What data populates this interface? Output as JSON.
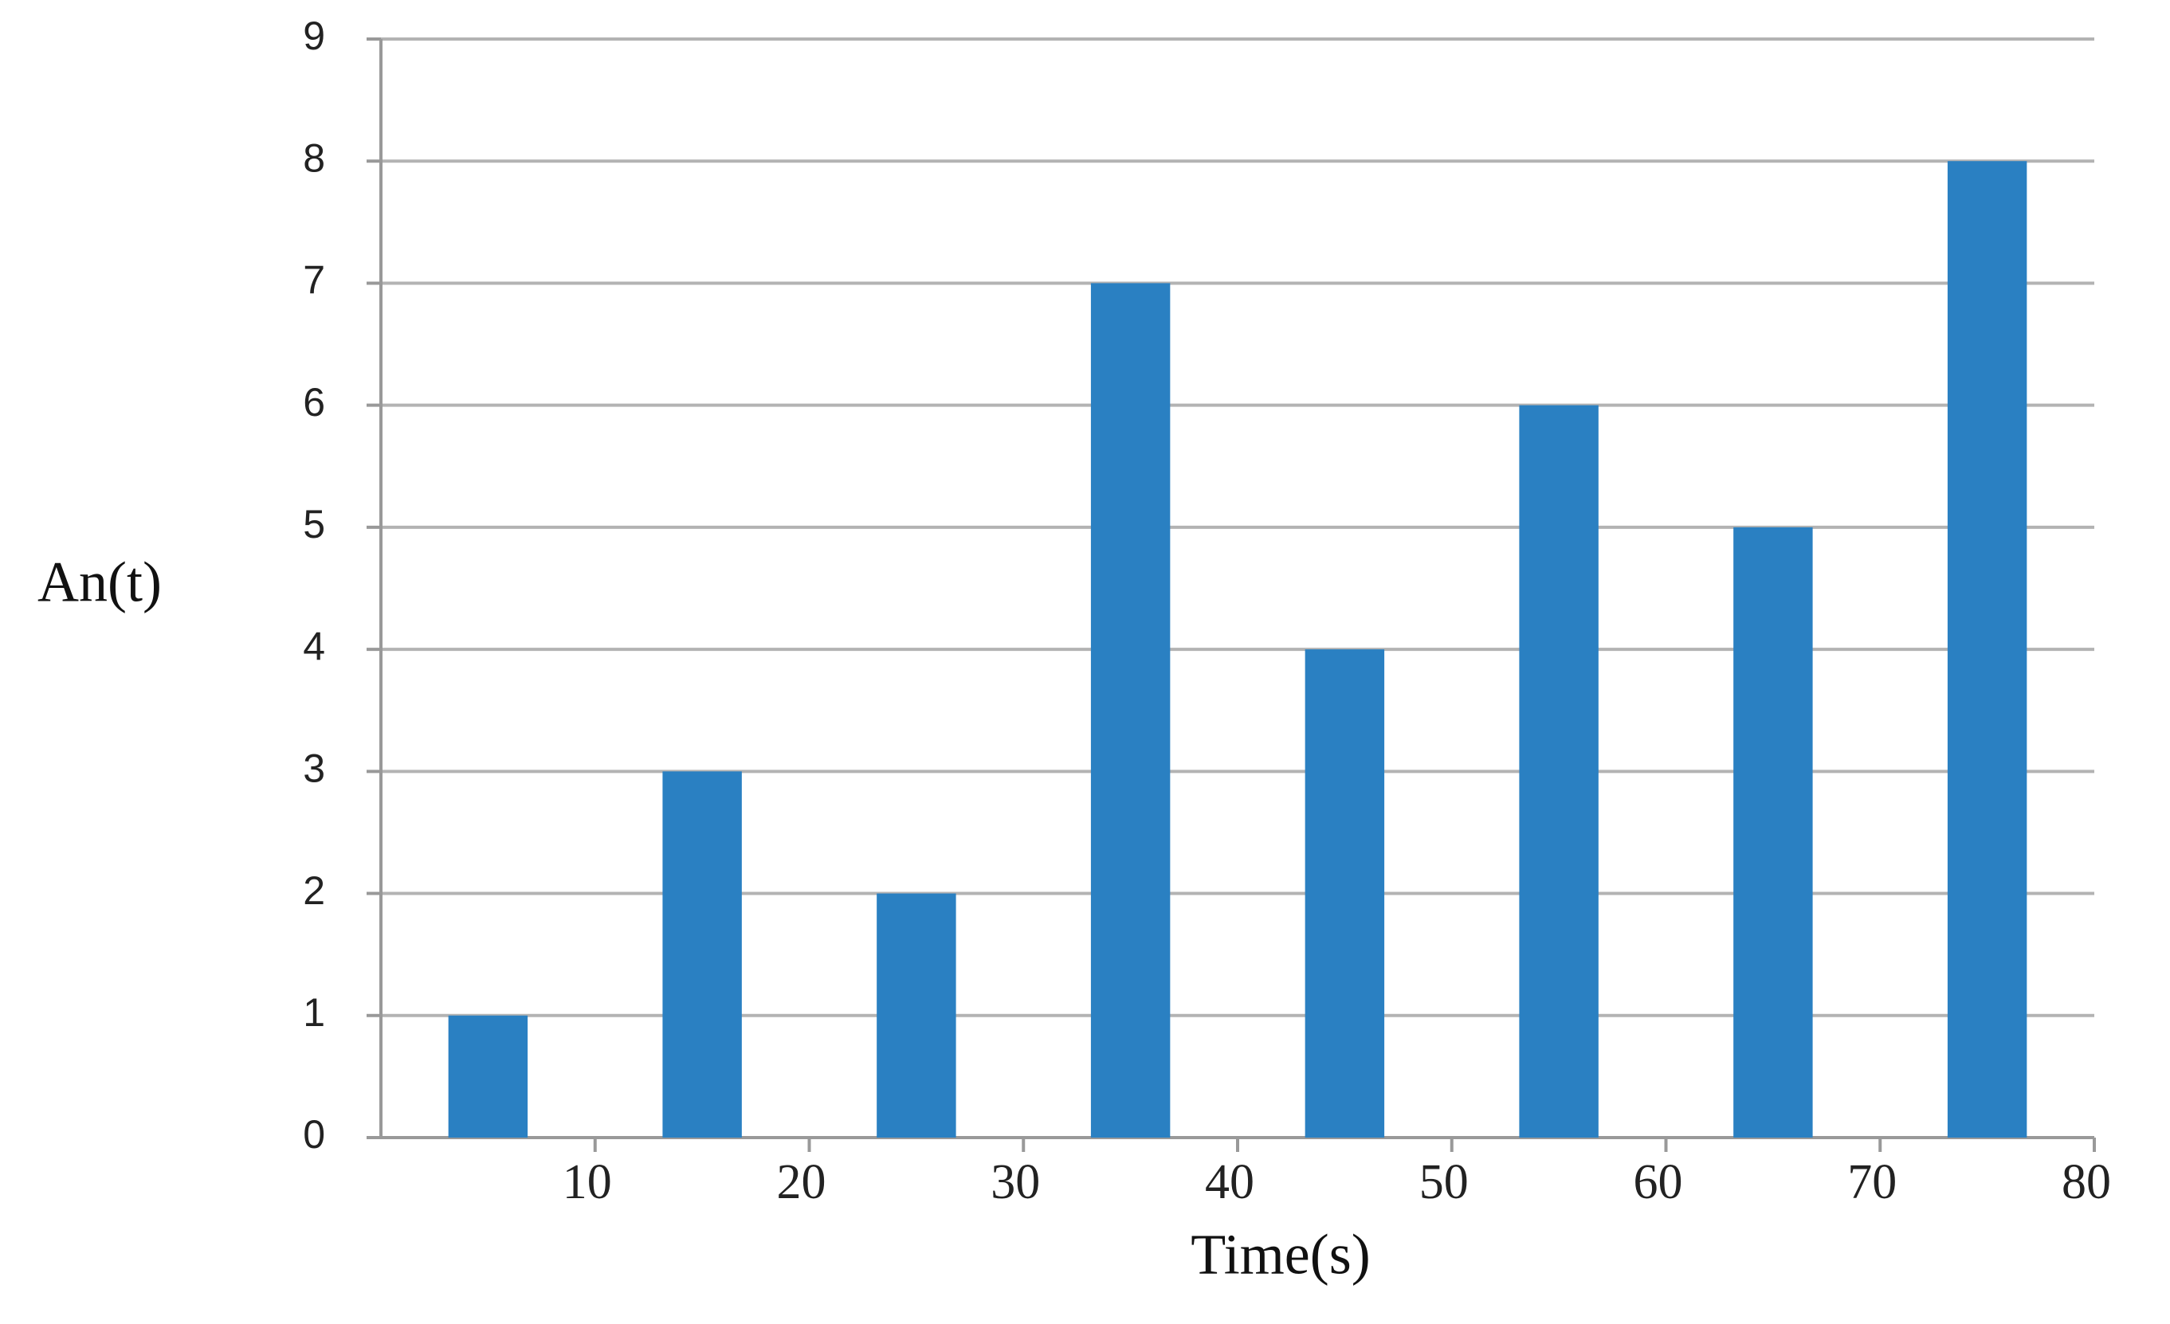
{
  "chart_data": {
    "type": "bar",
    "x": [
      5,
      15,
      25,
      35,
      45,
      55,
      65,
      75
    ],
    "values": [
      1,
      3,
      2,
      7,
      4,
      6,
      5,
      8
    ],
    "color": "#2a80c2",
    "xlabel": "Time(s)",
    "ylabel": "An(t)",
    "xlim": [
      0,
      80
    ],
    "xticks": [
      10,
      20,
      30,
      40,
      50,
      60,
      70,
      80
    ],
    "ylim": [
      0,
      9
    ],
    "yticks": [
      0,
      1,
      2,
      3,
      4,
      5,
      6,
      7,
      8,
      9
    ],
    "grid": true
  }
}
